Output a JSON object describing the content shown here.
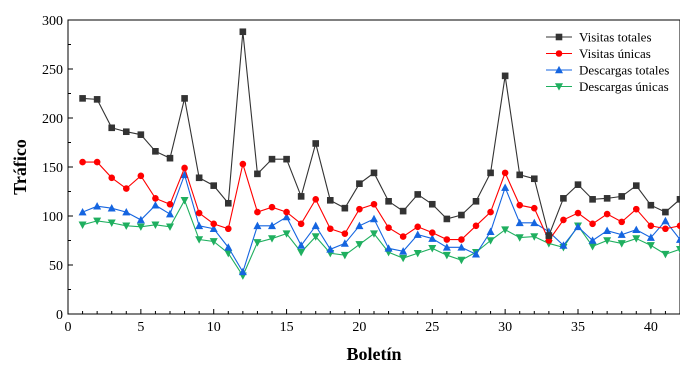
{
  "chart_data": {
    "type": "line",
    "xlabel": "Boletín",
    "ylabel": "Tráfico",
    "xlim": [
      0,
      42
    ],
    "ylim": [
      0,
      300
    ],
    "xticks": [
      0,
      5,
      10,
      15,
      20,
      25,
      30,
      35,
      40
    ],
    "yticks": [
      0,
      50,
      100,
      150,
      200,
      250,
      300
    ],
    "legend_position": "top-right",
    "x": [
      1,
      2,
      3,
      4,
      5,
      6,
      7,
      8,
      9,
      10,
      11,
      12,
      13,
      14,
      15,
      16,
      17,
      18,
      19,
      20,
      21,
      22,
      23,
      24,
      25,
      26,
      27,
      28,
      29,
      30,
      31,
      32,
      33,
      34,
      35,
      36,
      37,
      38,
      39,
      40,
      41,
      42
    ],
    "series": [
      {
        "name": "Visitas totales",
        "color": "#333333",
        "marker": "square",
        "values": [
          220,
          219,
          190,
          186,
          183,
          166,
          159,
          220,
          139,
          131,
          113,
          288,
          143,
          158,
          158,
          120,
          174,
          116,
          108,
          133,
          144,
          115,
          105,
          122,
          112,
          97,
          101,
          115,
          144,
          243,
          142,
          138,
          80,
          118,
          132,
          117,
          118,
          120,
          131,
          111,
          104,
          117
        ]
      },
      {
        "name": "Visitas únicas",
        "color": "#ff0000",
        "marker": "circle",
        "values": [
          155,
          155,
          139,
          128,
          141,
          118,
          112,
          149,
          103,
          92,
          87,
          153,
          104,
          109,
          104,
          92,
          117,
          87,
          82,
          107,
          112,
          88,
          79,
          89,
          83,
          76,
          76,
          90,
          104,
          144,
          111,
          108,
          75,
          96,
          103,
          92,
          102,
          94,
          107,
          90,
          87,
          90
        ]
      },
      {
        "name": "Descargas totales",
        "color": "#1565e0",
        "marker": "triangle-up",
        "values": [
          104,
          110,
          108,
          104,
          96,
          111,
          102,
          142,
          90,
          87,
          68,
          43,
          90,
          90,
          99,
          70,
          90,
          66,
          72,
          90,
          97,
          67,
          64,
          81,
          77,
          68,
          68,
          61,
          84,
          129,
          93,
          93,
          84,
          70,
          89,
          75,
          85,
          81,
          86,
          78,
          95,
          76
        ]
      },
      {
        "name": "Descargas únicas",
        "color": "#1faf5f",
        "marker": "triangle-down",
        "values": [
          91,
          95,
          93,
          90,
          89,
          91,
          89,
          116,
          76,
          74,
          62,
          39,
          73,
          77,
          82,
          63,
          79,
          62,
          60,
          71,
          82,
          63,
          57,
          62,
          67,
          60,
          55,
          63,
          75,
          86,
          78,
          79,
          72,
          68,
          90,
          69,
          75,
          72,
          77,
          70,
          61,
          66
        ]
      }
    ]
  }
}
